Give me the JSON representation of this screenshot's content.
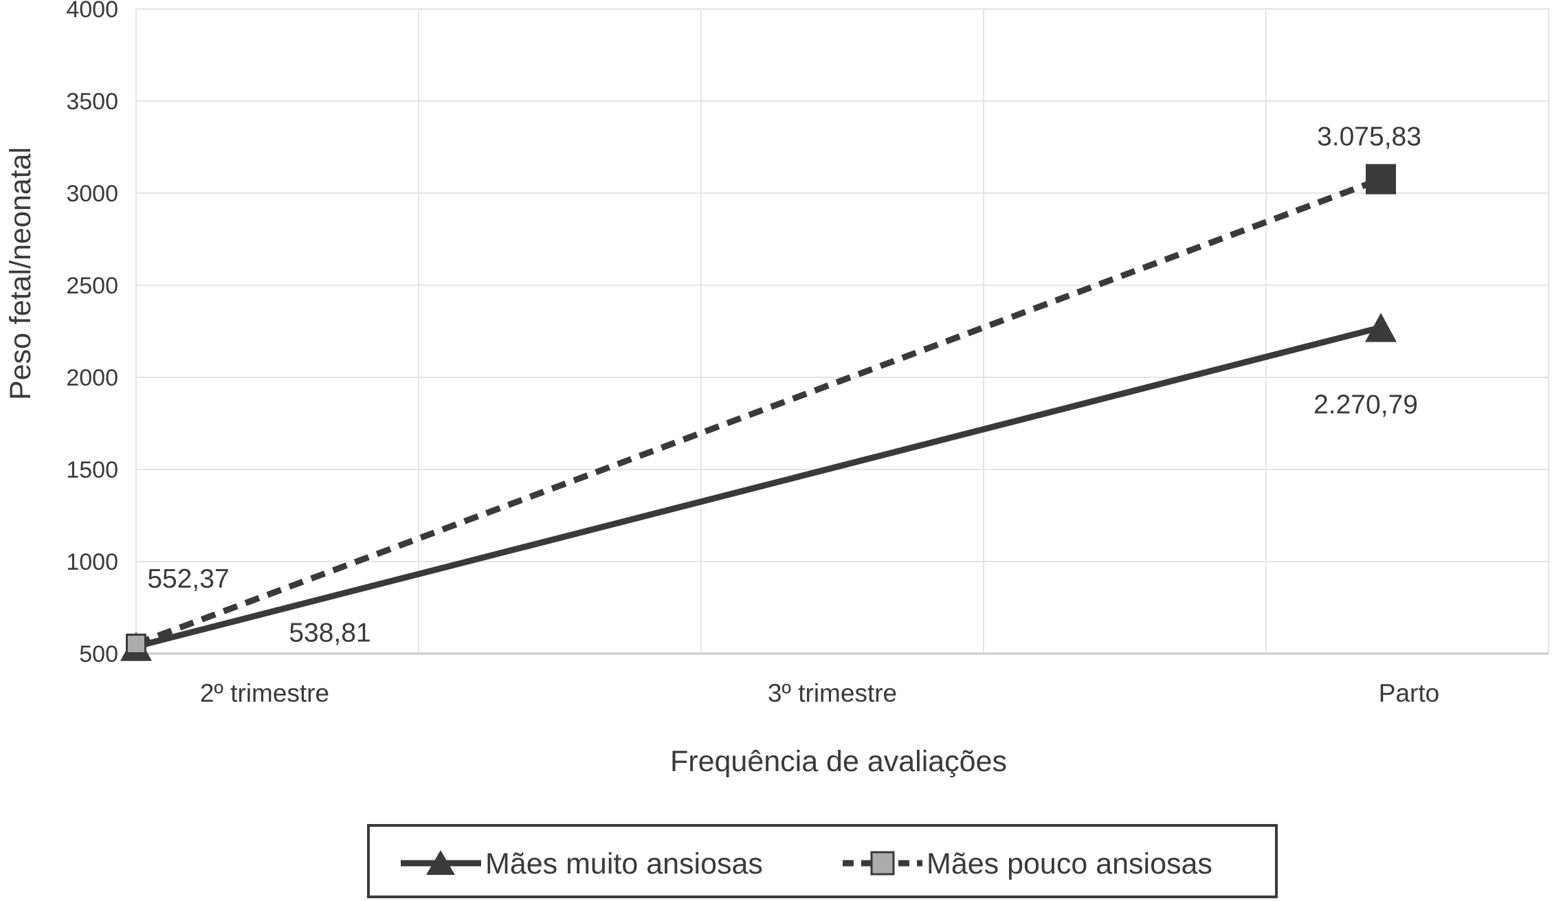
{
  "page": {
    "background": "#ffffff"
  },
  "chart_data": {
    "type": "line",
    "title": "",
    "x_axis_label": "Frequência de avaliações",
    "y_axis_label": "Peso fetal/neonatal",
    "categories": [
      "2º trimestre",
      "3º trimestre",
      "Parto"
    ],
    "y_ticks": [
      500,
      1000,
      1500,
      2000,
      2500,
      3000,
      3500,
      4000
    ],
    "ylim": [
      500,
      4000
    ],
    "grid": true,
    "legend_position": "bottom-center",
    "colors": {
      "line": "#3a3a3a",
      "text": "#3a3a3a",
      "gridline": "#e4e4e4",
      "axis_line": "#c9c9c9",
      "square_marker_fill": "#ababab"
    },
    "series": [
      {
        "name": "Mães muito ansiosas",
        "line_style": "solid",
        "marker": "triangle",
        "color": "#3a3a3a",
        "marker_fills": [
          "#3a3a3a",
          "#3a3a3a"
        ],
        "marker_sizes": [
          46,
          46
        ],
        "points": [
          {
            "category": "2º trimestre",
            "value": 538.81,
            "label": "538,81"
          },
          {
            "category": "Parto",
            "value": 2270.79,
            "label": "2.270,79"
          }
        ]
      },
      {
        "name": "Mães pouco ansiosas",
        "line_style": "dashed",
        "marker": "square",
        "color": "#3a3a3a",
        "marker_fills": [
          "#ababab",
          "#3a3a3a"
        ],
        "marker_sizes": [
          27,
          44
        ],
        "points": [
          {
            "category": "2º trimestre",
            "value": 552.37,
            "label": "552,37"
          },
          {
            "category": "Parto",
            "value": 3075.83,
            "label": "3.075,83"
          }
        ]
      }
    ]
  }
}
